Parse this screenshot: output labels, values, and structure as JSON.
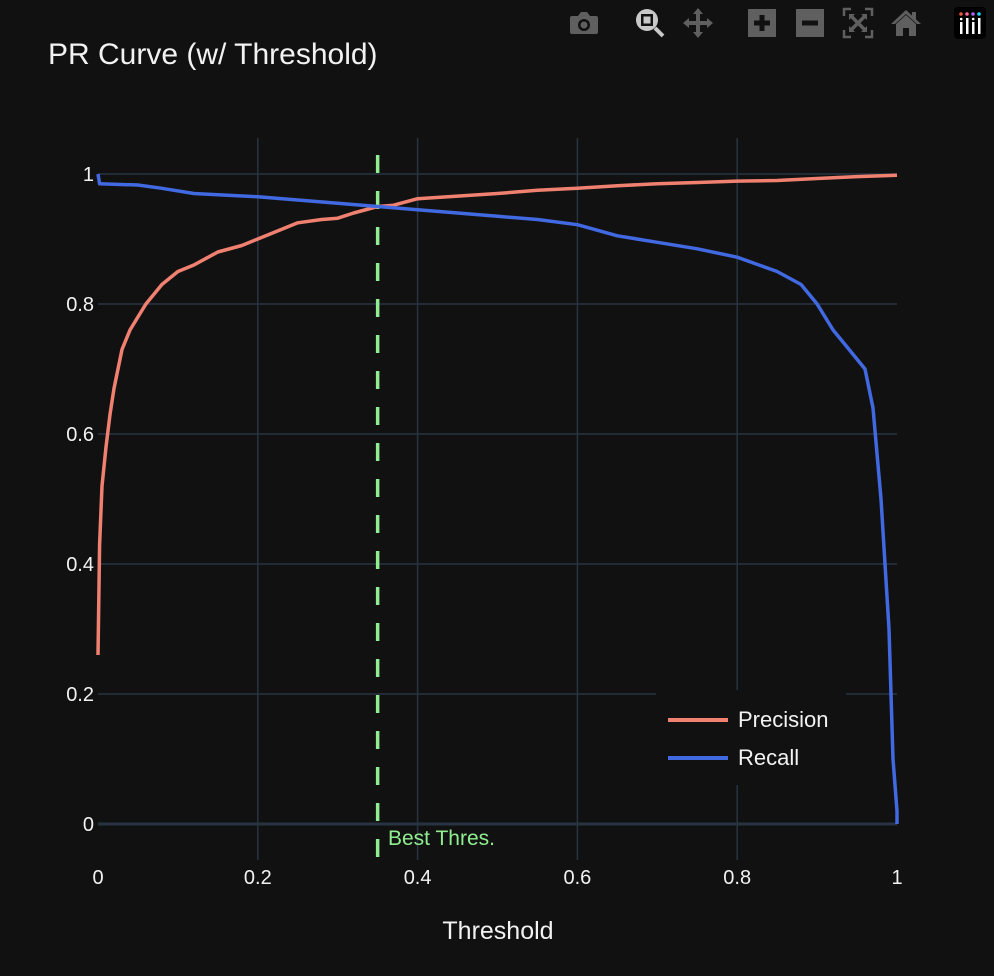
{
  "title": "PR Curve (w/ Threshold)",
  "modebar": {
    "buttons": [
      {
        "name": "camera-icon",
        "label": "Download plot as a png"
      },
      {
        "name": "zoom-icon",
        "label": "Zoom",
        "active": true
      },
      {
        "name": "pan-icon",
        "label": "Pan"
      },
      {
        "name": "zoom-in-icon",
        "label": "Zoom in"
      },
      {
        "name": "zoom-out-icon",
        "label": "Zoom out"
      },
      {
        "name": "autoscale-icon",
        "label": "Autoscale"
      },
      {
        "name": "home-icon",
        "label": "Reset axes"
      },
      {
        "name": "plotly-logo-icon",
        "label": "Produced with Plotly"
      }
    ]
  },
  "legend": {
    "items": [
      {
        "label": "Precision",
        "color": "#f08070"
      },
      {
        "label": "Recall",
        "color": "#4169e1"
      }
    ]
  },
  "annotation": {
    "text": "Best Thres.",
    "x": 0.35,
    "color": "#90ee90"
  },
  "colors": {
    "background": "#111111",
    "grid": "#283442",
    "precision": "#f08070",
    "recall": "#4169e1",
    "threshold": "#90ee90"
  },
  "chart_data": {
    "type": "line",
    "title": "PR Curve (w/ Threshold)",
    "xlabel": "Threshold",
    "ylabel": "",
    "xlim": [
      0,
      1
    ],
    "ylim": [
      0,
      1
    ],
    "grid": true,
    "legend_position": "bottom-right inside",
    "x_ticks": [
      "0",
      "0.2",
      "0.4",
      "0.6",
      "0.8",
      "1"
    ],
    "y_ticks": [
      "0",
      "0.2",
      "0.4",
      "0.6",
      "0.8",
      "1"
    ],
    "series": [
      {
        "name": "Precision",
        "color": "#f08070",
        "x": [
          0.0,
          0.002,
          0.005,
          0.01,
          0.015,
          0.02,
          0.03,
          0.04,
          0.05,
          0.06,
          0.08,
          0.1,
          0.12,
          0.15,
          0.18,
          0.2,
          0.22,
          0.25,
          0.28,
          0.3,
          0.32,
          0.35,
          0.37,
          0.4,
          0.45,
          0.5,
          0.55,
          0.6,
          0.65,
          0.7,
          0.75,
          0.8,
          0.85,
          0.9,
          0.95,
          1.0
        ],
        "values": [
          0.26,
          0.43,
          0.52,
          0.58,
          0.63,
          0.67,
          0.73,
          0.76,
          0.78,
          0.8,
          0.83,
          0.85,
          0.86,
          0.88,
          0.89,
          0.9,
          0.91,
          0.925,
          0.93,
          0.932,
          0.94,
          0.95,
          0.952,
          0.962,
          0.966,
          0.97,
          0.975,
          0.978,
          0.982,
          0.985,
          0.987,
          0.989,
          0.99,
          0.993,
          0.996,
          0.998
        ]
      },
      {
        "name": "Recall",
        "color": "#4169e1",
        "x": [
          0.0,
          0.002,
          0.05,
          0.08,
          0.12,
          0.15,
          0.2,
          0.25,
          0.3,
          0.35,
          0.4,
          0.45,
          0.5,
          0.55,
          0.6,
          0.65,
          0.7,
          0.75,
          0.8,
          0.85,
          0.88,
          0.9,
          0.92,
          0.94,
          0.96,
          0.97,
          0.98,
          0.99,
          0.995,
          1.0,
          1.0
        ],
        "values": [
          1.0,
          0.985,
          0.983,
          0.978,
          0.97,
          0.968,
          0.965,
          0.96,
          0.955,
          0.95,
          0.945,
          0.94,
          0.935,
          0.93,
          0.922,
          0.905,
          0.895,
          0.885,
          0.872,
          0.85,
          0.83,
          0.8,
          0.76,
          0.73,
          0.7,
          0.64,
          0.5,
          0.3,
          0.1,
          0.02,
          0.0
        ]
      },
      {
        "name": "Best Threshold",
        "type": "vline",
        "x": 0.35,
        "dash": "dash",
        "color": "#90ee90",
        "annotation": "Best Thres."
      }
    ]
  }
}
